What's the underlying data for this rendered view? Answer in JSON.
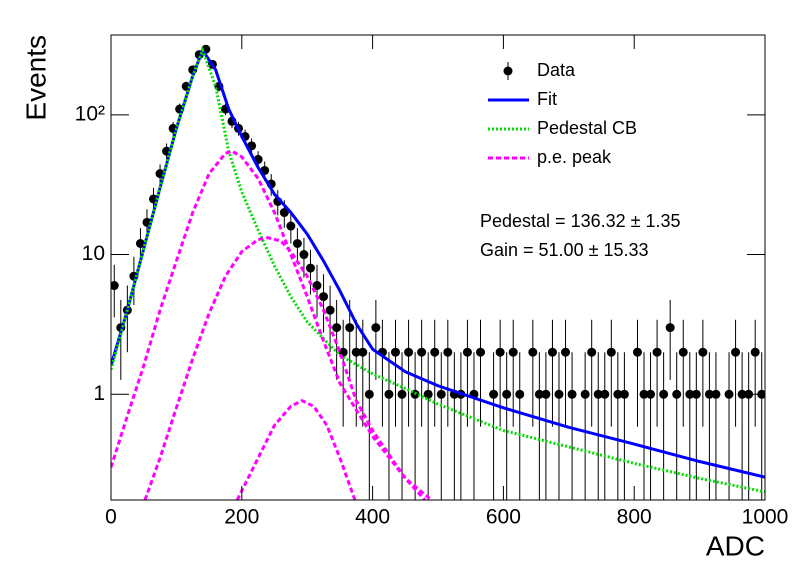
{
  "chart_data": {
    "type": "line",
    "x_label": "ADC",
    "y_label": "Events",
    "log_y": true,
    "xlim": [
      0,
      1000
    ],
    "ylim": [
      0.175,
      373
    ],
    "xticks": [
      0,
      200,
      400,
      600,
      800,
      1000
    ],
    "yticks": [
      1,
      10,
      {
        "value": 100,
        "label": "10²"
      }
    ],
    "legend": "upper right",
    "annotations": [
      "Pedestal = 136.32 ± 1.35",
      "Gain = 51.00 ± 15.33"
    ],
    "series": [
      {
        "name": "Data",
        "color": "#000000",
        "style": "markers",
        "x": [
          5,
          15,
          25,
          35,
          45,
          55,
          65,
          75,
          85,
          95,
          105,
          115,
          125,
          135,
          145,
          155,
          165,
          175,
          185,
          195,
          205,
          215,
          225,
          235,
          245,
          255,
          265,
          275,
          285,
          295,
          305,
          315,
          325,
          335,
          345,
          355,
          365,
          375,
          385,
          395,
          405,
          415,
          425,
          435,
          445,
          455,
          465,
          475,
          485,
          495,
          505,
          515,
          525,
          535,
          545,
          555,
          565,
          575,
          585,
          595,
          605,
          615,
          625,
          635,
          645,
          655,
          665,
          675,
          685,
          695,
          705,
          715,
          725,
          735,
          745,
          755,
          765,
          775,
          785,
          795,
          805,
          815,
          825,
          835,
          845,
          855,
          865,
          875,
          885,
          895,
          905,
          915,
          925,
          935,
          945,
          955,
          965,
          975,
          985,
          995
        ],
        "values": [
          6,
          3,
          4,
          7,
          12,
          17,
          25,
          38,
          55,
          80,
          110,
          160,
          210,
          270,
          295,
          230,
          160,
          110,
          90,
          80,
          70,
          60,
          48,
          40,
          32,
          24,
          20,
          16,
          12,
          10,
          8,
          6,
          5,
          4,
          3,
          2,
          3,
          2,
          2,
          1,
          3,
          2,
          1,
          2,
          1,
          2,
          1,
          2,
          1,
          2,
          1,
          2,
          1,
          1,
          2,
          1,
          2,
          null,
          1,
          2,
          1,
          2,
          1,
          null,
          2,
          1,
          1,
          2,
          1,
          2,
          1,
          null,
          1,
          2,
          1,
          1,
          2,
          1,
          1,
          null,
          2,
          1,
          1,
          2,
          1,
          3,
          1,
          2,
          1,
          1,
          2,
          1,
          1,
          null,
          1,
          2,
          1,
          1,
          2,
          1
        ]
      },
      {
        "name": "Fit",
        "color": "#0000ff",
        "style": "solid",
        "x": [
          0,
          25,
          50,
          75,
          100,
          125,
          140,
          160,
          180,
          200,
          225,
          250,
          275,
          300,
          325,
          350,
          375,
          400,
          450,
          500,
          600,
          700,
          800,
          900,
          1000
        ],
        "values": [
          1.6,
          4,
          11,
          30,
          80,
          190,
          290,
          210,
          110,
          70,
          42,
          27,
          20,
          14,
          9,
          5.5,
          3.2,
          2.1,
          1.45,
          1.15,
          0.8,
          0.58,
          0.44,
          0.33,
          0.255
        ]
      },
      {
        "name": "Pedestal CB",
        "color": "#00dd00",
        "style": "dotted",
        "x": [
          0,
          25,
          50,
          75,
          100,
          125,
          140,
          160,
          180,
          200,
          225,
          250,
          275,
          300,
          325,
          350,
          400,
          450,
          500,
          600,
          700,
          800,
          900,
          1000
        ],
        "values": [
          1.5,
          4,
          11,
          30,
          80,
          190,
          290,
          160,
          55,
          28,
          15,
          8.3,
          5,
          3.3,
          2.5,
          1.9,
          1.4,
          1.1,
          0.85,
          0.55,
          0.42,
          0.32,
          0.25,
          0.2
        ]
      },
      {
        "name": "p.e. peak",
        "color": "#ff00ff",
        "style": "dashed",
        "x": [
          0,
          25,
          50,
          75,
          100,
          125,
          150,
          175,
          185,
          200,
          225,
          250,
          275,
          300,
          325,
          350,
          400,
          450,
          490
        ],
        "values": [
          0.3,
          0.7,
          1.6,
          4,
          9,
          20,
          38,
          53,
          55,
          50,
          35,
          20,
          10,
          5,
          2.4,
          1.2,
          0.5,
          0.25,
          0.175
        ]
      },
      {
        "name": "p.e. peak",
        "color": "#ff00ff",
        "style": "dashed",
        "x": [
          52,
          75,
          100,
          125,
          150,
          175,
          200,
          225,
          240,
          260,
          275,
          300,
          325,
          350,
          375,
          400,
          450,
          480
        ],
        "values": [
          0.175,
          0.35,
          0.8,
          1.8,
          3.8,
          7,
          10.5,
          12.8,
          13.2,
          12.5,
          10.5,
          7,
          4,
          2,
          0.9,
          0.55,
          0.25,
          0.175
        ]
      },
      {
        "name": "p.e. peak",
        "color": "#ff00ff",
        "style": "dashed",
        "x": [
          193,
          225,
          250,
          275,
          292,
          310,
          330,
          350,
          373
        ],
        "values": [
          0.175,
          0.35,
          0.6,
          0.82,
          0.9,
          0.82,
          0.6,
          0.35,
          0.175
        ]
      }
    ]
  }
}
